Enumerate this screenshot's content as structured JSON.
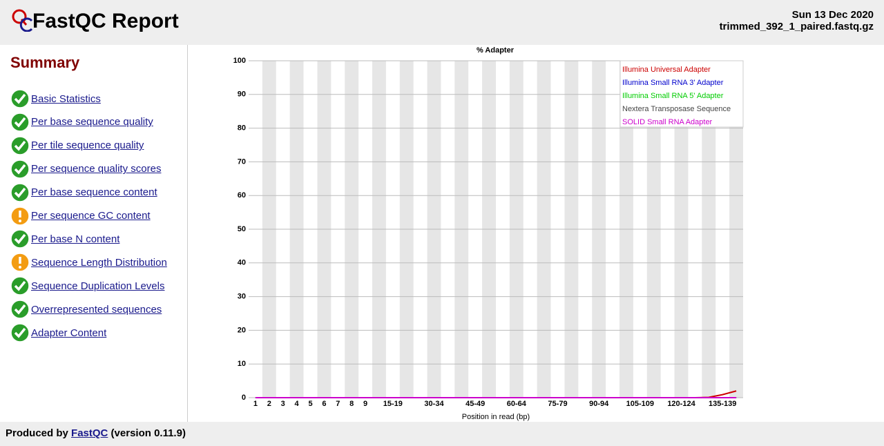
{
  "header": {
    "title": "FastQC Report",
    "date": "Sun 13 Dec 2020",
    "filename": "trimmed_392_1_paired.fastq.gz"
  },
  "summary": {
    "title": "Summary",
    "items": [
      {
        "label": "Basic Statistics",
        "status": "pass"
      },
      {
        "label": "Per base sequence quality",
        "status": "pass"
      },
      {
        "label": "Per tile sequence quality",
        "status": "pass"
      },
      {
        "label": "Per sequence quality scores",
        "status": "pass"
      },
      {
        "label": "Per base sequence content",
        "status": "pass"
      },
      {
        "label": "Per sequence GC content",
        "status": "warn"
      },
      {
        "label": "Per base N content",
        "status": "pass"
      },
      {
        "label": "Sequence Length Distribution",
        "status": "warn"
      },
      {
        "label": "Sequence Duplication Levels",
        "status": "pass"
      },
      {
        "label": "Overrepresented sequences",
        "status": "pass"
      },
      {
        "label": "Adapter Content",
        "status": "pass"
      }
    ]
  },
  "chart_data": {
    "type": "line",
    "title": "% Adapter",
    "x_label": "Position in read (bp)",
    "categories": [
      "1",
      "2",
      "3",
      "4",
      "5",
      "6",
      "7",
      "8",
      "9",
      null,
      "15-19",
      null,
      null,
      "30-34",
      null,
      null,
      "45-49",
      null,
      null,
      "60-64",
      null,
      null,
      "75-79",
      null,
      null,
      "90-94",
      null,
      null,
      "105-109",
      null,
      null,
      "120-124",
      null,
      null,
      "135-139",
      null
    ],
    "ylim": [
      0,
      100
    ],
    "yticks": [
      0,
      10,
      20,
      30,
      40,
      50,
      60,
      70,
      80,
      90,
      100
    ],
    "grid": true,
    "legend": "top-right",
    "series": [
      {
        "name": "Illumina Universal Adapter",
        "color": "#cc0000",
        "values": [
          0,
          0,
          0,
          0,
          0,
          0,
          0,
          0,
          0,
          0,
          0,
          0,
          0,
          0,
          0,
          0,
          0,
          0,
          0,
          0,
          0,
          0,
          0,
          0,
          0,
          0,
          0,
          0,
          0,
          0,
          0,
          0,
          0,
          0.1,
          0.9,
          2.0
        ]
      },
      {
        "name": "Illumina Small RNA 3' Adapter",
        "color": "#0000cc",
        "values": [
          0,
          0,
          0,
          0,
          0,
          0,
          0,
          0,
          0,
          0,
          0,
          0,
          0,
          0,
          0,
          0,
          0,
          0,
          0,
          0,
          0,
          0,
          0,
          0,
          0,
          0,
          0,
          0,
          0,
          0,
          0,
          0,
          0,
          0,
          0,
          0
        ]
      },
      {
        "name": "Illumina Small RNA 5' Adapter",
        "color": "#00cc00",
        "values": [
          0,
          0,
          0,
          0,
          0,
          0,
          0,
          0,
          0,
          0,
          0,
          0,
          0,
          0,
          0,
          0,
          0,
          0,
          0,
          0,
          0,
          0,
          0,
          0,
          0,
          0,
          0,
          0,
          0,
          0,
          0,
          0,
          0,
          0,
          0,
          0
        ]
      },
      {
        "name": "Nextera Transposase Sequence",
        "color": "#444444",
        "values": [
          0,
          0,
          0,
          0,
          0,
          0,
          0,
          0,
          0,
          0,
          0,
          0,
          0,
          0,
          0,
          0,
          0,
          0,
          0,
          0,
          0,
          0,
          0,
          0,
          0,
          0,
          0,
          0,
          0,
          0,
          0,
          0,
          0,
          0,
          0,
          0
        ]
      },
      {
        "name": "SOLID Small RNA Adapter",
        "color": "#cc00cc",
        "values": [
          0,
          0,
          0,
          0,
          0,
          0,
          0,
          0,
          0,
          0,
          0,
          0,
          0,
          0,
          0,
          0,
          0,
          0,
          0,
          0,
          0,
          0,
          0,
          0,
          0,
          0,
          0,
          0,
          0,
          0,
          0,
          0,
          0,
          0,
          0,
          0
        ]
      }
    ]
  },
  "footer": {
    "prefix": "Produced by",
    "link": "FastQC",
    "suffix": "(version 0.11.9)"
  }
}
